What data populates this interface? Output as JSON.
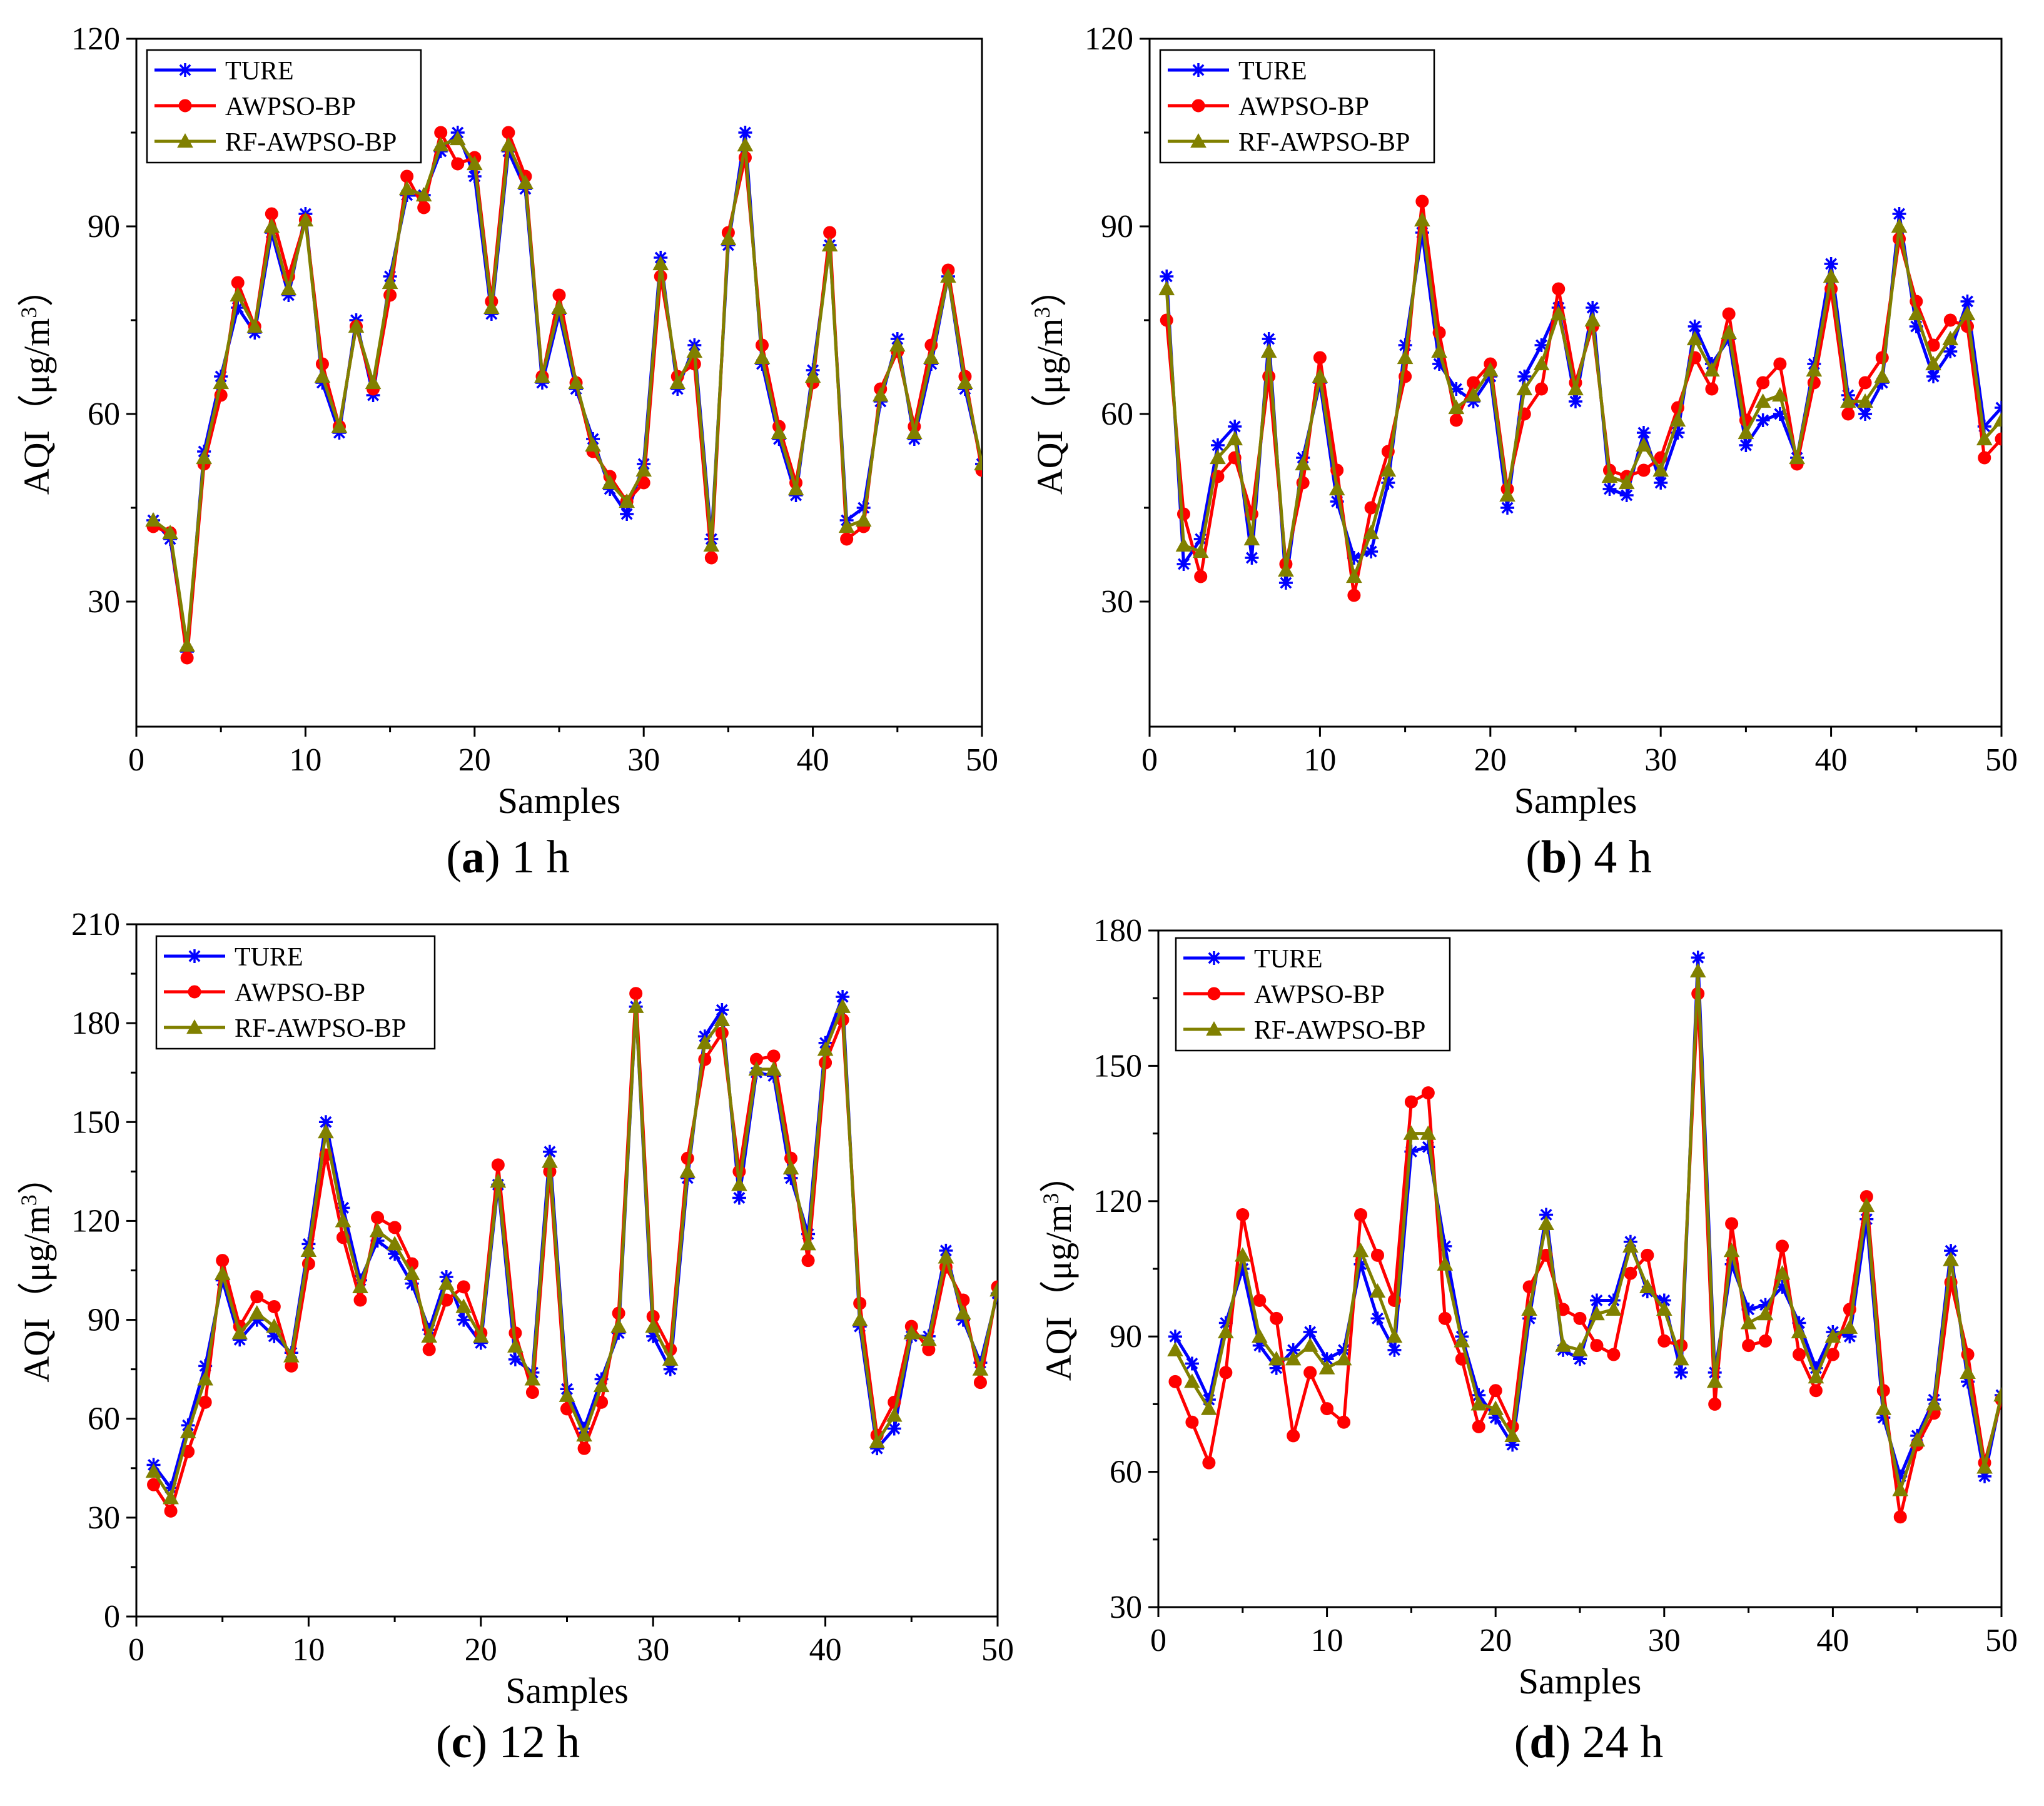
{
  "figure": {
    "legend_labels": [
      "TURE",
      "AWPSO-BP",
      "RF-AWPSO-BP"
    ],
    "series_colors": {
      "TURE": "#0000ff",
      "AWPSO-BP": "#ff0000",
      "RF-AWPSO-BP": "#808000"
    },
    "panels": [
      {
        "letter": "a",
        "caption": "1 h"
      },
      {
        "letter": "b",
        "caption": "4 h"
      },
      {
        "letter": "c",
        "caption": "12 h"
      },
      {
        "letter": "d",
        "caption": "24 h"
      }
    ]
  },
  "chart_data": [
    {
      "id": "a",
      "type": "line",
      "title": "(a) 1 h",
      "xlabel": "Samples",
      "ylabel_main": "AQI",
      "ylabel_unit": "（μg/m",
      "ylabel_sup": "3",
      "ylabel_close": "）",
      "xlim": [
        0,
        50
      ],
      "ylim": [
        10,
        120
      ],
      "xticks": [
        0,
        10,
        20,
        30,
        40,
        50
      ],
      "yticks": [
        30,
        60,
        90,
        120
      ],
      "x": [
        1,
        2,
        3,
        4,
        5,
        6,
        7,
        8,
        9,
        10,
        11,
        12,
        13,
        14,
        15,
        16,
        17,
        18,
        19,
        20,
        21,
        22,
        23,
        24,
        25,
        26,
        27,
        28,
        29,
        30,
        31,
        32,
        33,
        34,
        35,
        36,
        37,
        38,
        39,
        40,
        41,
        42,
        43,
        44,
        45,
        46,
        47,
        48,
        49,
        50
      ],
      "series": [
        {
          "name": "TURE",
          "values": [
            43,
            40,
            22,
            54,
            66,
            77,
            73,
            89,
            79,
            92,
            65,
            57,
            75,
            63,
            82,
            95,
            95,
            102,
            105,
            98,
            76,
            102,
            96,
            65,
            76,
            64,
            56,
            48,
            44,
            52,
            85,
            64,
            71,
            40,
            87,
            105,
            68,
            56,
            47,
            67,
            87,
            43,
            45,
            62,
            72,
            56,
            68,
            82,
            64,
            52
          ]
        },
        {
          "name": "AWPSO-BP",
          "values": [
            42,
            41,
            21,
            52,
            63,
            81,
            74,
            92,
            82,
            91,
            68,
            58,
            74,
            64,
            79,
            98,
            93,
            105,
            100,
            101,
            78,
            105,
            98,
            66,
            79,
            65,
            54,
            50,
            46,
            49,
            82,
            66,
            68,
            37,
            89,
            101,
            71,
            58,
            49,
            65,
            89,
            40,
            42,
            64,
            70,
            58,
            71,
            83,
            66,
            51
          ]
        },
        {
          "name": "RF-AWPSO-BP",
          "values": [
            43,
            41,
            23,
            53,
            65,
            79,
            74,
            90,
            80,
            91,
            66,
            58,
            74,
            65,
            81,
            96,
            95,
            103,
            104,
            100,
            77,
            103,
            97,
            66,
            77,
            65,
            55,
            49,
            46,
            51,
            84,
            65,
            70,
            39,
            88,
            103,
            69,
            57,
            48,
            66,
            87,
            42,
            43,
            63,
            71,
            57,
            69,
            82,
            65,
            52
          ]
        }
      ]
    },
    {
      "id": "b",
      "type": "line",
      "title": "(b) 4 h",
      "xlabel": "Samples",
      "ylabel_main": "AQI",
      "ylabel_unit": "（μg/m",
      "ylabel_sup": "3",
      "ylabel_close": "）",
      "xlim": [
        0,
        50
      ],
      "ylim": [
        10,
        120
      ],
      "xticks": [
        0,
        10,
        20,
        30,
        40,
        50
      ],
      "yticks": [
        30,
        60,
        90,
        120
      ],
      "x": [
        1,
        2,
        3,
        4,
        5,
        6,
        7,
        8,
        9,
        10,
        11,
        12,
        13,
        14,
        15,
        16,
        17,
        18,
        19,
        20,
        21,
        22,
        23,
        24,
        25,
        26,
        27,
        28,
        29,
        30,
        31,
        32,
        33,
        34,
        35,
        36,
        37,
        38,
        39,
        40,
        41,
        42,
        43,
        44,
        45,
        46,
        47,
        48,
        49,
        50
      ],
      "series": [
        {
          "name": "TURE",
          "values": [
            82,
            36,
            40,
            55,
            58,
            37,
            72,
            33,
            53,
            65,
            46,
            37,
            38,
            49,
            71,
            89,
            68,
            64,
            62,
            66,
            45,
            66,
            71,
            77,
            62,
            77,
            48,
            47,
            57,
            49,
            57,
            74,
            68,
            72,
            55,
            59,
            60,
            53,
            68,
            84,
            63,
            60,
            65,
            92,
            74,
            66,
            70,
            78,
            58,
            61
          ]
        },
        {
          "name": "AWPSO-BP",
          "values": [
            75,
            44,
            34,
            50,
            53,
            44,
            66,
            36,
            49,
            69,
            51,
            31,
            45,
            54,
            66,
            94,
            73,
            59,
            65,
            68,
            48,
            60,
            64,
            80,
            65,
            74,
            51,
            50,
            51,
            53,
            61,
            69,
            64,
            76,
            59,
            65,
            68,
            52,
            65,
            80,
            60,
            65,
            69,
            88,
            78,
            71,
            75,
            74,
            53,
            56
          ]
        },
        {
          "name": "RF-AWPSO-BP",
          "values": [
            80,
            39,
            38,
            53,
            56,
            40,
            70,
            35,
            52,
            66,
            48,
            34,
            41,
            51,
            69,
            91,
            70,
            61,
            63,
            67,
            47,
            64,
            68,
            76,
            64,
            75,
            50,
            49,
            55,
            51,
            59,
            72,
            67,
            73,
            57,
            62,
            63,
            53,
            67,
            82,
            62,
            62,
            66,
            90,
            76,
            68,
            72,
            76,
            56,
            59
          ]
        }
      ]
    },
    {
      "id": "c",
      "type": "line",
      "title": "(c) 12 h",
      "xlabel": "Samples",
      "ylabel_main": "AQI",
      "ylabel_unit": "（μg/m",
      "ylabel_sup": "3",
      "ylabel_close": "）",
      "xlim": [
        0,
        50
      ],
      "ylim": [
        0,
        210
      ],
      "xticks": [
        0,
        10,
        20,
        30,
        40,
        50
      ],
      "yticks": [
        0,
        30,
        60,
        90,
        120,
        150,
        180,
        210
      ],
      "x": [
        1,
        2,
        3,
        4,
        5,
        6,
        7,
        8,
        9,
        10,
        11,
        12,
        13,
        14,
        15,
        16,
        17,
        18,
        19,
        20,
        21,
        22,
        23,
        24,
        25,
        26,
        27,
        28,
        29,
        30,
        31,
        32,
        33,
        34,
        35,
        36,
        37,
        38,
        39,
        40,
        41,
        42,
        43,
        44,
        45,
        46,
        47,
        48,
        49,
        50
      ],
      "series": [
        {
          "name": "TURE",
          "values": [
            46,
            39,
            58,
            76,
            102,
            84,
            90,
            85,
            80,
            113,
            150,
            124,
            102,
            114,
            110,
            101,
            87,
            103,
            90,
            83,
            131,
            78,
            74,
            141,
            69,
            57,
            72,
            86,
            185,
            85,
            75,
            133,
            176,
            184,
            127,
            165,
            164,
            133,
            116,
            174,
            188,
            88,
            51,
            57,
            85,
            85,
            111,
            90,
            77,
            98
          ]
        },
        {
          "name": "AWPSO-BP",
          "values": [
            40,
            32,
            50,
            65,
            108,
            88,
            97,
            94,
            76,
            107,
            140,
            115,
            96,
            121,
            118,
            107,
            81,
            96,
            100,
            86,
            137,
            86,
            68,
            135,
            63,
            51,
            65,
            92,
            189,
            91,
            81,
            139,
            169,
            177,
            135,
            169,
            170,
            139,
            108,
            168,
            181,
            95,
            55,
            65,
            88,
            81,
            106,
            96,
            71,
            100
          ]
        },
        {
          "name": "RF-AWPSO-BP",
          "values": [
            44,
            36,
            56,
            72,
            104,
            86,
            92,
            88,
            79,
            111,
            147,
            120,
            100,
            117,
            113,
            104,
            85,
            101,
            94,
            85,
            132,
            82,
            72,
            138,
            67,
            55,
            70,
            88,
            185,
            88,
            78,
            135,
            174,
            181,
            131,
            166,
            166,
            136,
            113,
            172,
            185,
            90,
            53,
            61,
            86,
            84,
            109,
            92,
            75,
            99
          ]
        }
      ]
    },
    {
      "id": "d",
      "type": "line",
      "title": "(d) 24 h",
      "xlabel": "Samples",
      "ylabel_main": "AQI",
      "ylabel_unit": "（μg/m",
      "ylabel_sup": "3",
      "ylabel_close": "）",
      "xlim": [
        0,
        50
      ],
      "ylim": [
        30,
        180
      ],
      "xticks": [
        0,
        10,
        20,
        30,
        40,
        50
      ],
      "yticks": [
        30,
        60,
        90,
        120,
        150,
        180
      ],
      "x": [
        1,
        2,
        3,
        4,
        5,
        6,
        7,
        8,
        9,
        10,
        11,
        12,
        13,
        14,
        15,
        16,
        17,
        18,
        19,
        20,
        21,
        22,
        23,
        24,
        25,
        26,
        27,
        28,
        29,
        30,
        31,
        32,
        33,
        34,
        35,
        36,
        37,
        38,
        39,
        40,
        41,
        42,
        43,
        44,
        45,
        46,
        47,
        48,
        49,
        50
      ],
      "series": [
        {
          "name": "TURE",
          "values": [
            90,
            84,
            76,
            93,
            105,
            88,
            83,
            87,
            91,
            85,
            87,
            106,
            94,
            87,
            131,
            132,
            110,
            90,
            77,
            72,
            66,
            94,
            117,
            87,
            85,
            98,
            98,
            111,
            100,
            98,
            82,
            174,
            82,
            106,
            96,
            97,
            101,
            93,
            83,
            91,
            90,
            116,
            72,
            59,
            68,
            76,
            109,
            80,
            59,
            77
          ]
        },
        {
          "name": "AWPSO-BP",
          "values": [
            80,
            71,
            62,
            82,
            117,
            98,
            94,
            68,
            82,
            74,
            71,
            117,
            108,
            98,
            142,
            144,
            94,
            85,
            70,
            78,
            70,
            101,
            108,
            96,
            94,
            88,
            86,
            104,
            108,
            89,
            88,
            166,
            75,
            115,
            88,
            89,
            110,
            86,
            78,
            86,
            96,
            121,
            78,
            50,
            66,
            73,
            102,
            86,
            62,
            76
          ]
        },
        {
          "name": "RF-AWPSO-BP",
          "values": [
            87,
            80,
            74,
            91,
            108,
            90,
            85,
            85,
            88,
            83,
            85,
            109,
            100,
            90,
            135,
            135,
            106,
            89,
            75,
            74,
            68,
            96,
            115,
            88,
            87,
            95,
            96,
            110,
            101,
            96,
            85,
            171,
            80,
            109,
            93,
            95,
            104,
            91,
            81,
            90,
            92,
            119,
            74,
            56,
            67,
            75,
            107,
            82,
            61,
            77
          ]
        }
      ]
    }
  ]
}
